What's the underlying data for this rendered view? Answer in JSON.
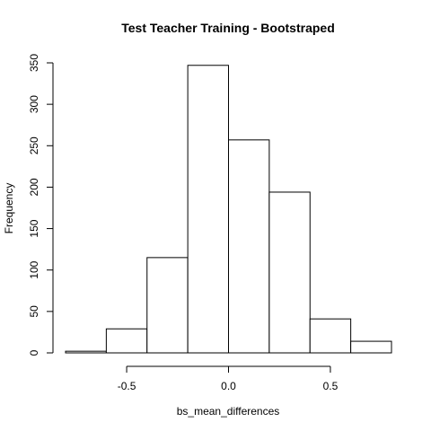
{
  "chart_data": {
    "type": "bar",
    "title": "Test Teacher Training - Bootstraped",
    "xlabel": "bs_mean_differences",
    "ylabel": "Frequency",
    "bins": [
      {
        "start": -0.8,
        "end": -0.6,
        "count": 2
      },
      {
        "start": -0.6,
        "end": -0.4,
        "count": 29
      },
      {
        "start": -0.4,
        "end": -0.2,
        "count": 115
      },
      {
        "start": -0.2,
        "end": 0.0,
        "count": 347
      },
      {
        "start": 0.0,
        "end": 0.2,
        "count": 257
      },
      {
        "start": 0.2,
        "end": 0.4,
        "count": 194
      },
      {
        "start": 0.4,
        "end": 0.6,
        "count": 41
      },
      {
        "start": 0.6,
        "end": 0.8,
        "count": 14
      }
    ],
    "xlim": [
      -0.8,
      0.8
    ],
    "ylim": [
      0,
      350
    ],
    "x_ticks": [
      -0.5,
      0.0,
      0.5
    ],
    "x_tick_labels": [
      "-0.5",
      "0.0",
      "0.5"
    ],
    "y_ticks": [
      0,
      50,
      100,
      150,
      200,
      250,
      300,
      350
    ],
    "y_tick_labels": [
      "0",
      "50",
      "100",
      "150",
      "200",
      "250",
      "300",
      "350"
    ],
    "grid": false,
    "legend": "none"
  }
}
